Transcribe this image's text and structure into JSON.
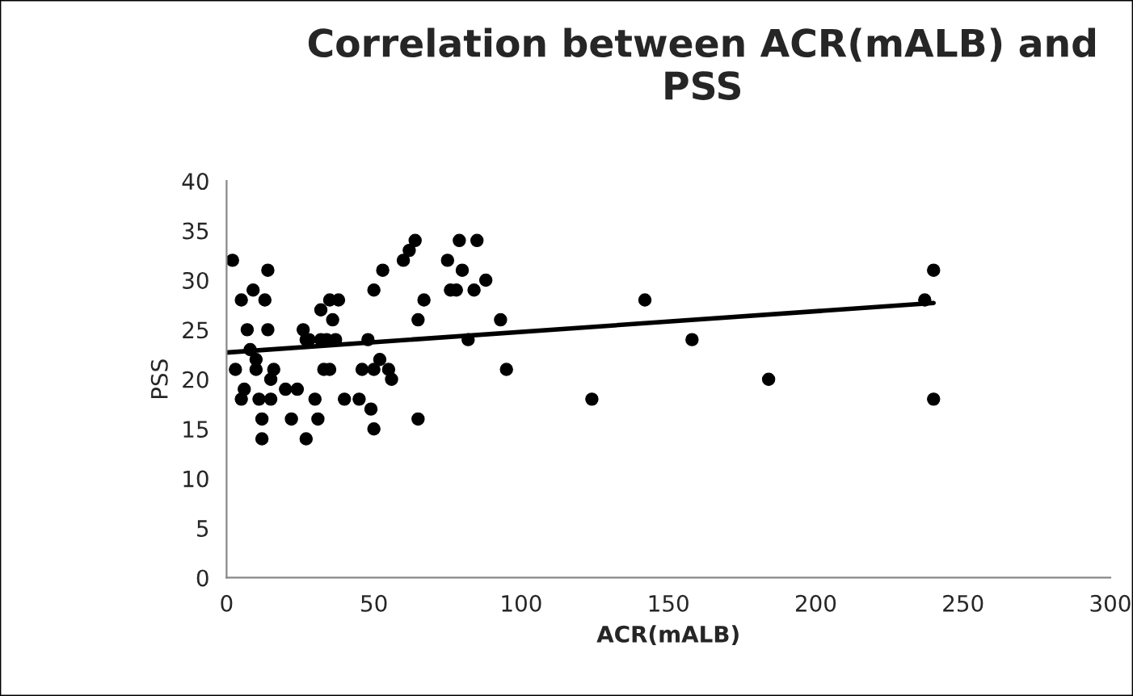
{
  "chart_data": {
    "type": "scatter",
    "title": "Correlation between ACR(mALB) and PSS",
    "xlabel": "ACR(mALB)",
    "ylabel": "PSS",
    "xlim": [
      0,
      300
    ],
    "xticks": [
      0,
      50,
      100,
      150,
      200,
      250,
      300
    ],
    "ylim": [
      0,
      40
    ],
    "yticks": [
      0,
      5,
      10,
      15,
      20,
      25,
      30,
      35,
      40
    ],
    "grid": false,
    "series": [
      {
        "marker": "circle",
        "color": "#000000",
        "x": [
          2,
          3,
          5,
          5,
          6,
          7,
          8,
          9,
          10,
          10,
          11,
          12,
          12,
          13,
          14,
          14,
          15,
          15,
          16,
          20,
          22,
          24,
          26,
          27,
          27,
          28,
          30,
          31,
          32,
          32,
          33,
          34,
          35,
          35,
          36,
          37,
          38,
          40,
          45,
          46,
          48,
          49,
          50,
          50,
          50,
          52,
          53,
          55,
          56,
          60,
          62,
          64,
          65,
          65,
          67,
          75,
          76,
          78,
          79,
          80,
          82,
          84,
          85,
          88,
          93,
          95,
          124,
          142,
          158,
          184,
          237,
          240,
          240
        ],
        "values": [
          32,
          21,
          28,
          18,
          19,
          25,
          23,
          29,
          21,
          22,
          18,
          16,
          14,
          28,
          31,
          25,
          18,
          20,
          21,
          19,
          16,
          19,
          25,
          24,
          14,
          24,
          18,
          16,
          27,
          24,
          21,
          24,
          21,
          28,
          26,
          24,
          28,
          18,
          18,
          21,
          24,
          17,
          15,
          21,
          29,
          22,
          31,
          21,
          20,
          32,
          33,
          34,
          26,
          16,
          28,
          32,
          29,
          29,
          34,
          31,
          24,
          29,
          34,
          30,
          26,
          21,
          18,
          28,
          24,
          20,
          28,
          31,
          18
        ]
      },
      {
        "type": "line",
        "color": "#000000",
        "x": [
          0,
          240
        ],
        "values": [
          22.7,
          27.7
        ]
      }
    ]
  }
}
